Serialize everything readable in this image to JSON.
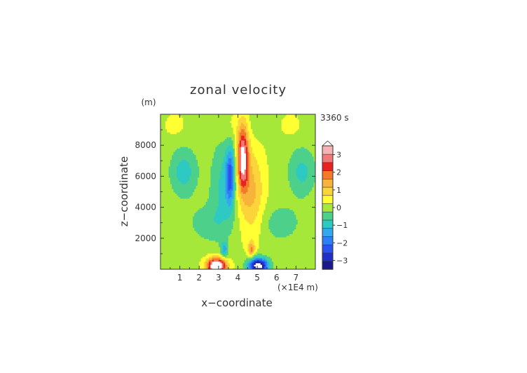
{
  "chart_data": {
    "type": "heatmap",
    "title": "zonal velocity",
    "time_label": "3360 s",
    "xlabel": "x−coordinate",
    "ylabel": "z−coordinate",
    "x_unit": "(×1E4 m)",
    "y_unit": "(m)",
    "xlim": [
      0,
      8
    ],
    "ylim": [
      0,
      10000
    ],
    "x_ticks": [
      {
        "value": 1,
        "label": "1"
      },
      {
        "value": 2,
        "label": "2"
      },
      {
        "value": 3,
        "label": "3"
      },
      {
        "value": 4,
        "label": "4"
      },
      {
        "value": 5,
        "label": "5"
      },
      {
        "value": 6,
        "label": "6"
      },
      {
        "value": 7,
        "label": "7"
      }
    ],
    "y_ticks": [
      {
        "value": 2000,
        "label": "2000"
      },
      {
        "value": 4000,
        "label": "4000"
      },
      {
        "value": 6000,
        "label": "6000"
      },
      {
        "value": 8000,
        "label": "8000"
      }
    ],
    "colorbar": {
      "levels": [
        -3.5,
        -3,
        -2.5,
        -2,
        -1.5,
        -1,
        -0.5,
        0,
        0.5,
        1,
        1.5,
        2,
        2.5,
        3,
        3.5
      ],
      "colors": [
        "#1a1a8a",
        "#1f2fc8",
        "#2a52f0",
        "#2c7ff5",
        "#33a8ef",
        "#2ec9c3",
        "#4dd08a",
        "#a6e83a",
        "#ffff33",
        "#fbd43a",
        "#f7b33a",
        "#f37a2a",
        "#e82222",
        "#f07a7a",
        "#f7b3b3"
      ],
      "tick_labels": [
        {
          "value": 3,
          "label": "3"
        },
        {
          "value": 2,
          "label": "2"
        },
        {
          "value": 1,
          "label": "1"
        },
        {
          "value": 0,
          "label": "0"
        },
        {
          "value": -1,
          "label": "−1"
        },
        {
          "value": -2,
          "label": "−2"
        },
        {
          "value": -3,
          "label": "−3"
        }
      ],
      "extend": "max"
    },
    "features": [
      {
        "type": "positive_max",
        "x": 2.9,
        "z": 200,
        "value": ">3.5"
      },
      {
        "type": "negative_min",
        "x": 5.0,
        "z": 200,
        "value": "<-3.5"
      },
      {
        "type": "positive_jet",
        "z_range": [
          1000,
          8500
        ],
        "x_range": [
          4.0,
          4.3
        ],
        "value": 2.5
      },
      {
        "type": "negative_jet",
        "z_range": [
          1000,
          7500
        ],
        "x_range": [
          3.5,
          4.0
        ],
        "value": -2.0
      }
    ]
  }
}
